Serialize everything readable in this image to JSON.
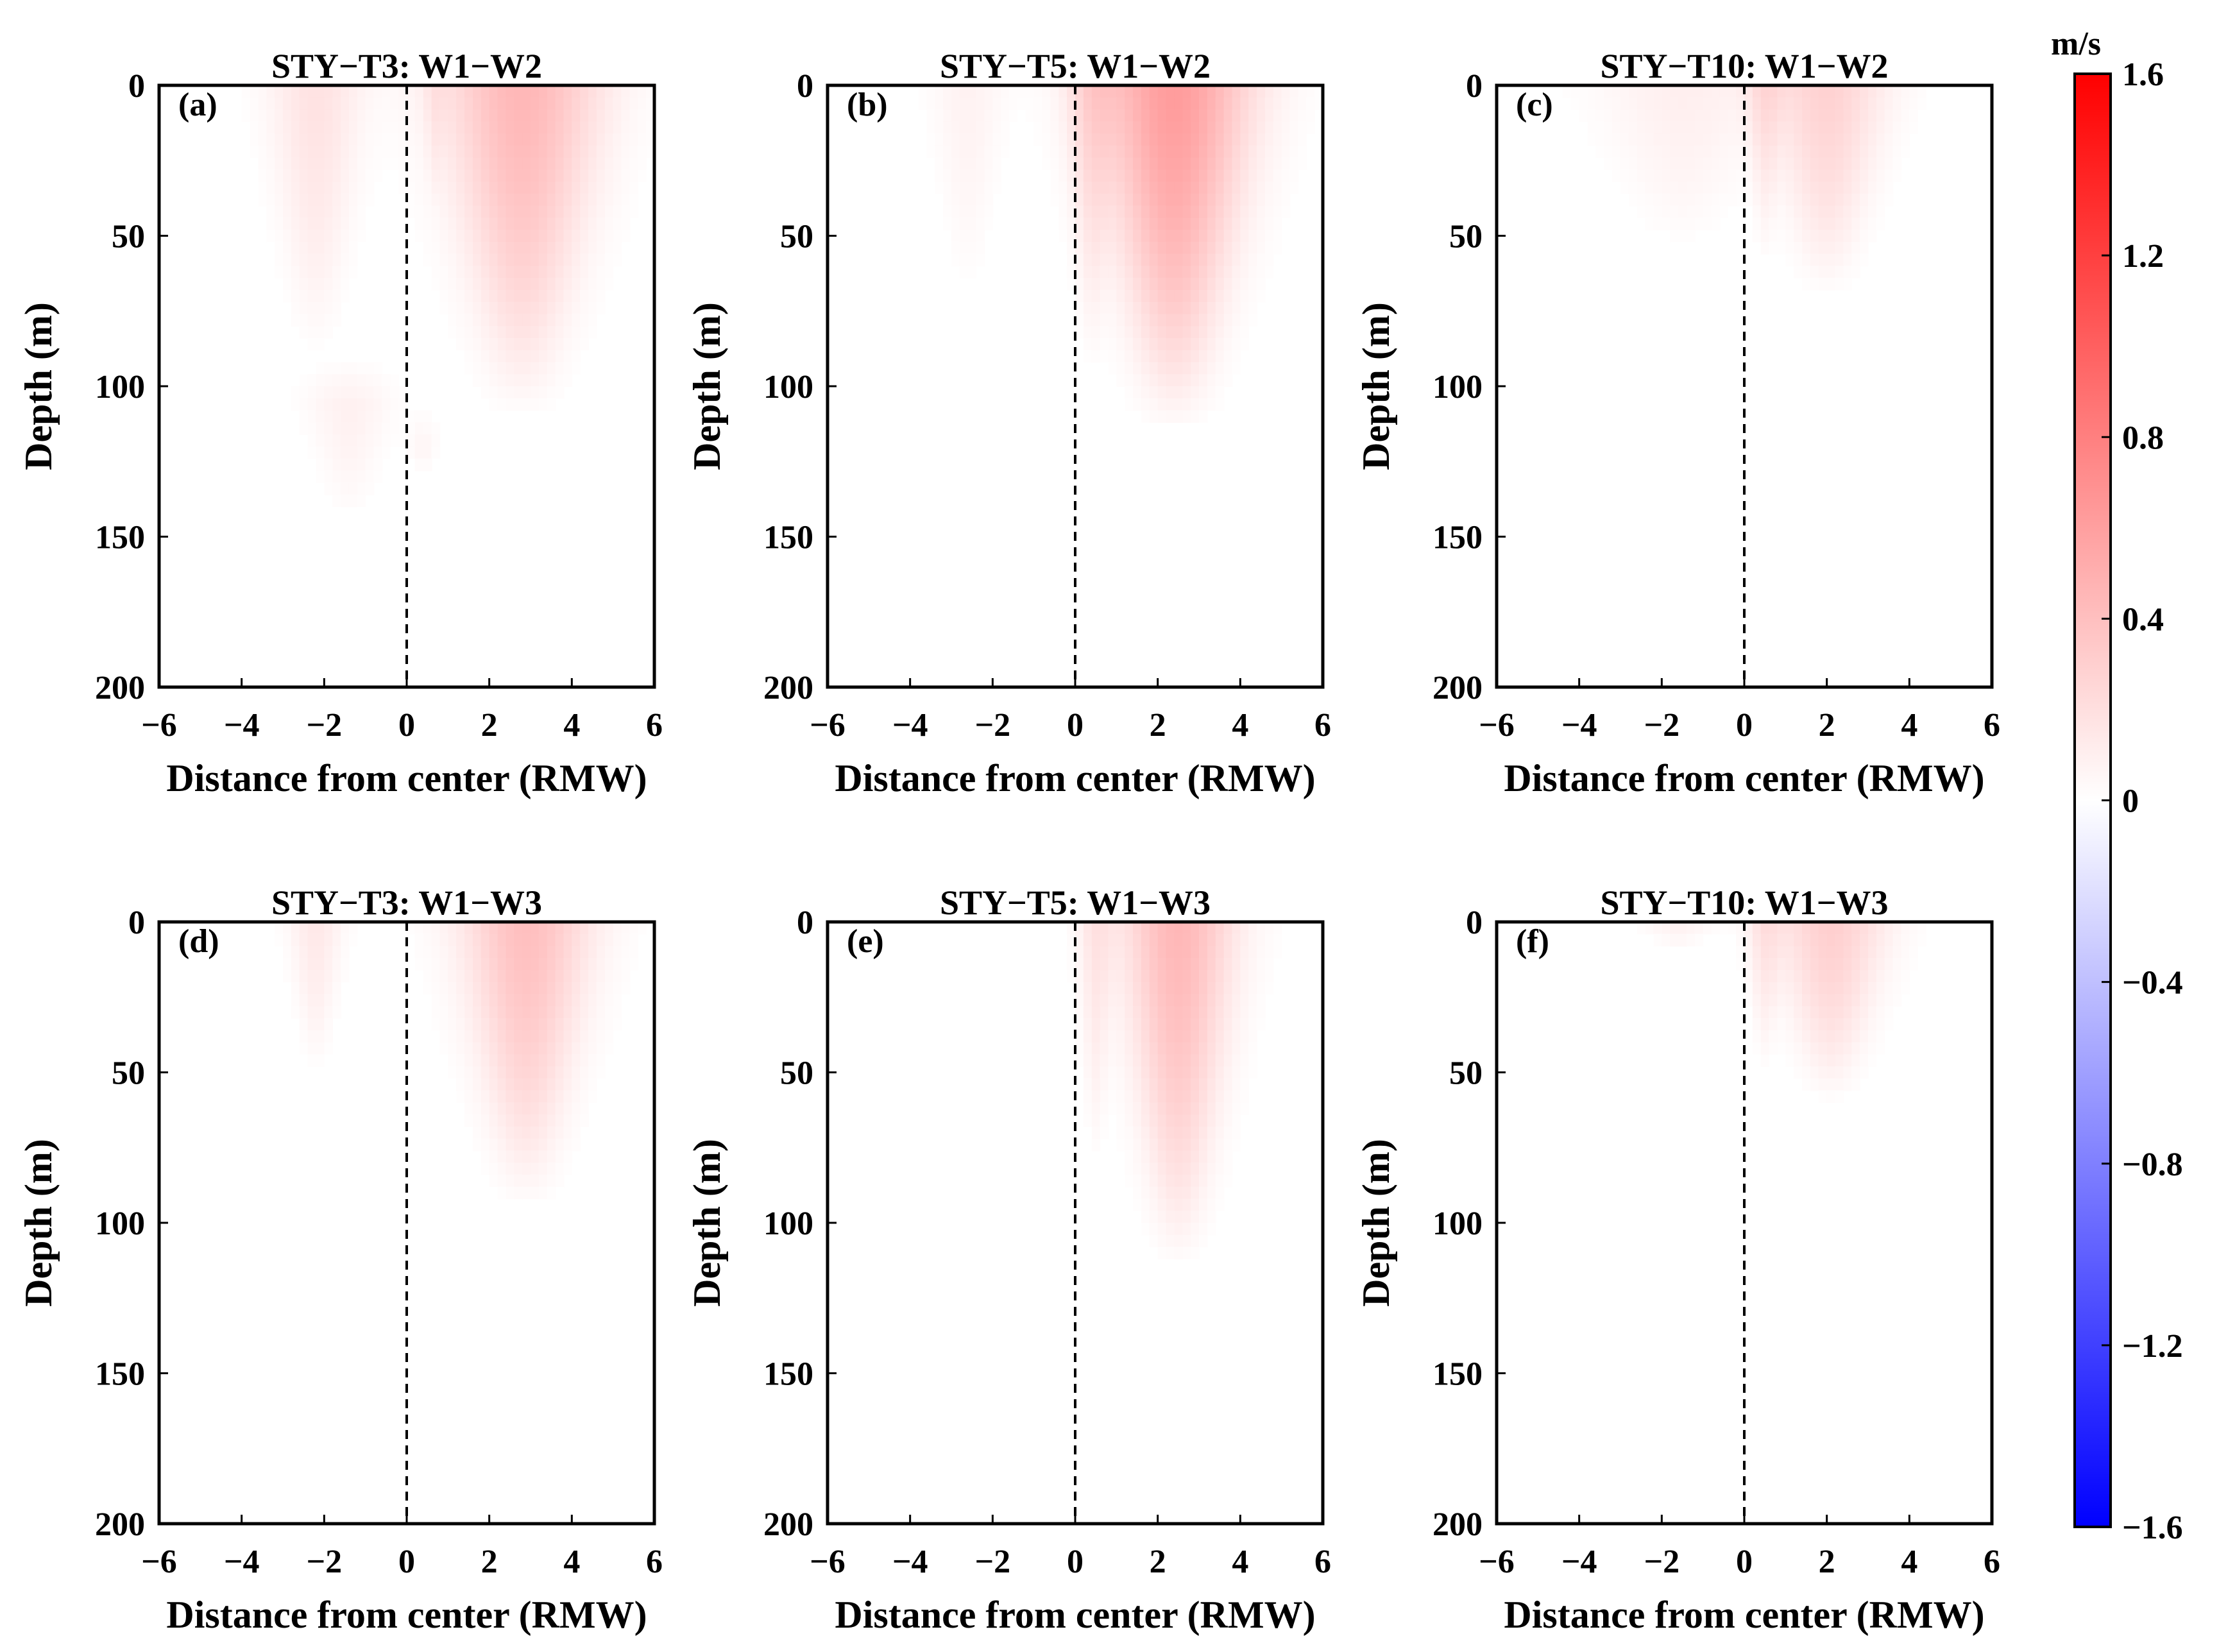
{
  "chart_data": {
    "type": "heatmap",
    "colorbar": {
      "unit": "m/s",
      "range": [
        -1.6,
        1.6
      ],
      "ticks": [
        "1.6",
        "1.2",
        "0.8",
        "0.4",
        "0",
        "−0.4",
        "−0.8",
        "−1.2",
        "−1.6"
      ],
      "tick_values": [
        1.6,
        1.2,
        0.8,
        0.4,
        0,
        -0.4,
        -0.8,
        -1.2,
        -1.6
      ],
      "colors": {
        "negative": "#0000ff",
        "zero": "#ffffff",
        "positive": "#ff0000"
      }
    },
    "axes": {
      "xlabel": "Distance from center (RMW)",
      "ylabel": "Depth (m)",
      "xlim": [
        -6,
        6
      ],
      "ylim": [
        0,
        200
      ],
      "xticks": [
        "−6",
        "−4",
        "−2",
        "0",
        "2",
        "4",
        "6"
      ],
      "xtick_values": [
        -6,
        -4,
        -2,
        0,
        2,
        4,
        6
      ],
      "yticks": [
        "0",
        "50",
        "100",
        "150",
        "200"
      ],
      "ytick_values": [
        0,
        50,
        100,
        150,
        200
      ],
      "center_line_x": 0
    },
    "panels": [
      {
        "label": "(a)",
        "title": "STY−T3: W1−W2",
        "features": [
          {
            "x": -2.2,
            "sx": 0.8,
            "depth": 90,
            "amp": 0.18
          },
          {
            "x": -1.4,
            "sx": 0.7,
            "depth": 145,
            "amp": 0.09,
            "top": 105
          },
          {
            "x": 0.4,
            "sx": 0.25,
            "depth": 20,
            "amp": 0.06,
            "top": 120
          },
          {
            "x": 2.8,
            "sx": 1.35,
            "depth": 110,
            "amp": 0.45
          },
          {
            "x": 0.7,
            "sx": 0.2,
            "depth": 40,
            "amp": 0.08
          }
        ]
      },
      {
        "label": "(b)",
        "title": "STY−T5: W1−W2",
        "features": [
          {
            "x": -2.6,
            "sx": 0.6,
            "depth": 70,
            "amp": 0.08
          },
          {
            "x": 2.4,
            "sx": 1.3,
            "depth": 115,
            "amp": 0.62
          },
          {
            "x": 0.4,
            "sx": 0.4,
            "depth": 95,
            "amp": 0.18
          }
        ]
      },
      {
        "label": "(c)",
        "title": "STY−T10: W1−W2",
        "features": [
          {
            "x": -1.5,
            "sx": 1.4,
            "depth": 55,
            "amp": 0.1
          },
          {
            "x": 0.5,
            "sx": 0.3,
            "depth": 60,
            "amp": 0.15
          },
          {
            "x": 2.0,
            "sx": 1.0,
            "depth": 70,
            "amp": 0.28
          }
        ]
      },
      {
        "label": "(d)",
        "title": "STY−T3: W1−W3",
        "features": [
          {
            "x": -2.2,
            "sx": 0.45,
            "depth": 50,
            "amp": 0.14
          },
          {
            "x": 2.9,
            "sx": 1.1,
            "depth": 95,
            "amp": 0.4
          }
        ]
      },
      {
        "label": "(e)",
        "title": "STY−T5: W1−W3",
        "features": [
          {
            "x": 0.5,
            "sx": 0.3,
            "depth": 80,
            "amp": 0.15
          },
          {
            "x": 2.5,
            "sx": 0.95,
            "depth": 115,
            "amp": 0.45
          }
        ]
      },
      {
        "label": "(f)",
        "title": "STY−T10: W1−W3",
        "features": [
          {
            "x": -1.6,
            "sx": 0.6,
            "depth": 10,
            "amp": 0.08
          },
          {
            "x": 0.5,
            "sx": 0.3,
            "depth": 50,
            "amp": 0.15
          },
          {
            "x": 2.1,
            "sx": 0.95,
            "depth": 60,
            "amp": 0.3
          }
        ]
      }
    ]
  }
}
